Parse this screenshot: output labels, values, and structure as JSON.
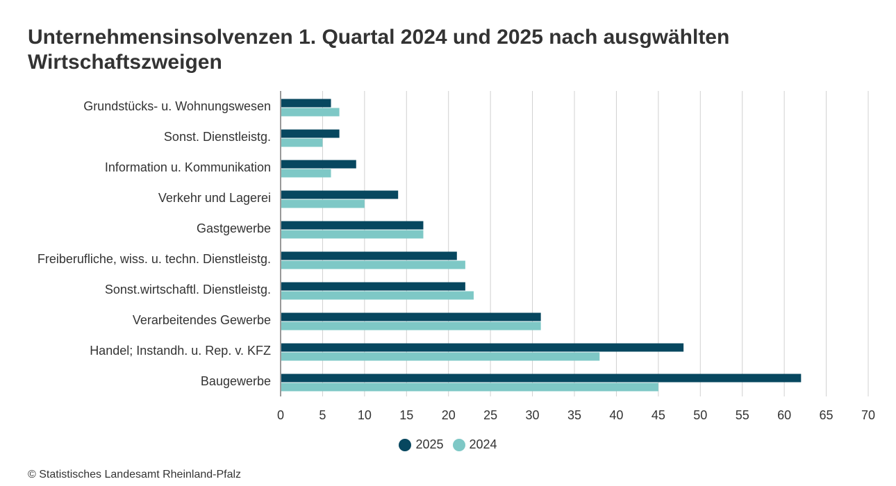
{
  "chart_data": {
    "type": "bar",
    "orientation": "horizontal",
    "title": "Unternehmensinsolvenzen 1. Quartal 2024 und 2025 nach ausgwählten Wirtschaftszweigen",
    "xlabel": "",
    "ylabel": "",
    "xlim": [
      0,
      70
    ],
    "xticks": [
      0,
      5,
      10,
      15,
      20,
      25,
      30,
      35,
      40,
      45,
      50,
      55,
      60,
      65,
      70
    ],
    "grid": true,
    "legend_position": "bottom-center",
    "categories": [
      "Grundstücks- u. Wohnungswesen",
      "Sonst. Dienstleistg.",
      "Information u. Kommunikation",
      "Verkehr und Lagerei",
      "Gastgewerbe",
      "Freiberufliche, wiss. u. techn. Dienstleistg.",
      "Sonst.wirtschaftl. Dienstleistg.",
      "Verarbeitendes Gewerbe",
      "Handel; Instandh. u. Rep. v. KFZ",
      "Baugewerbe"
    ],
    "series": [
      {
        "name": "2025",
        "color": "#07475f",
        "values": [
          6,
          7,
          9,
          14,
          17,
          21,
          22,
          31,
          48,
          62
        ]
      },
      {
        "name": "2024",
        "color": "#7ec8c6",
        "values": [
          7,
          5,
          6,
          10,
          17,
          22,
          23,
          31,
          38,
          45
        ]
      }
    ]
  },
  "source": "© Statistisches Landesamt Rheinland-Pfalz",
  "colors": {
    "grid": "#d0d0d0",
    "axis": "#333333",
    "text": "#333333"
  }
}
